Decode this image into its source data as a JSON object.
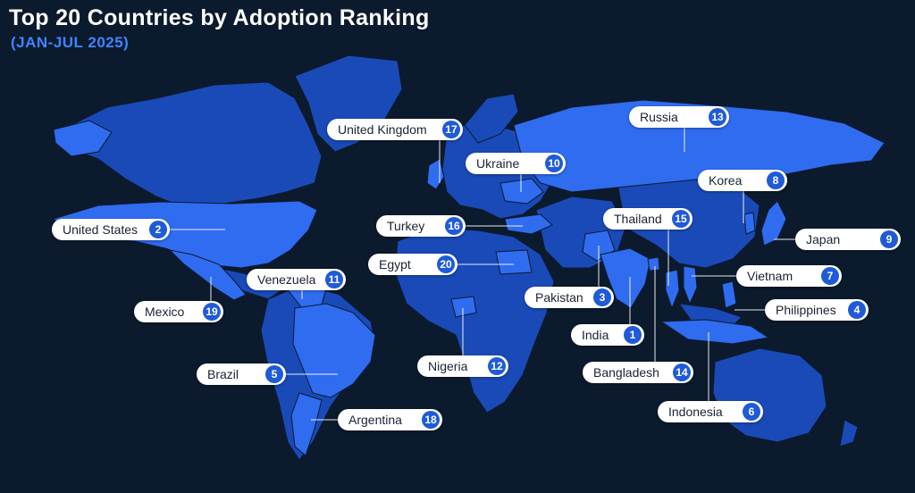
{
  "title": "Top 20 Countries by Adoption Ranking",
  "subtitle": "(JAN-JUL 2025)",
  "colors": {
    "background": "#0c1a2e",
    "ranked_country": "#2f6cf0",
    "other_land": "#1a4ab8",
    "rank_badge": "#1f5bd8",
    "label_bg": "#ffffff"
  },
  "countries": [
    {
      "name": "India",
      "rank": "1"
    },
    {
      "name": "United States",
      "rank": "2"
    },
    {
      "name": "Pakistan",
      "rank": "3"
    },
    {
      "name": "Philippines",
      "rank": "4"
    },
    {
      "name": "Brazil",
      "rank": "5"
    },
    {
      "name": "Indonesia",
      "rank": "6"
    },
    {
      "name": "Vietnam",
      "rank": "7"
    },
    {
      "name": "Korea",
      "rank": "8"
    },
    {
      "name": "Japan",
      "rank": "9"
    },
    {
      "name": "Ukraine",
      "rank": "10"
    },
    {
      "name": "Venezuela",
      "rank": "11"
    },
    {
      "name": "Nigeria",
      "rank": "12"
    },
    {
      "name": "Russia",
      "rank": "13"
    },
    {
      "name": "Bangladesh",
      "rank": "14"
    },
    {
      "name": "Thailand",
      "rank": "15"
    },
    {
      "name": "Turkey",
      "rank": "16"
    },
    {
      "name": "United Kingdom",
      "rank": "17"
    },
    {
      "name": "Argentina",
      "rank": "18"
    },
    {
      "name": "Mexico",
      "rank": "19"
    },
    {
      "name": "Egypt",
      "rank": "20"
    }
  ]
}
